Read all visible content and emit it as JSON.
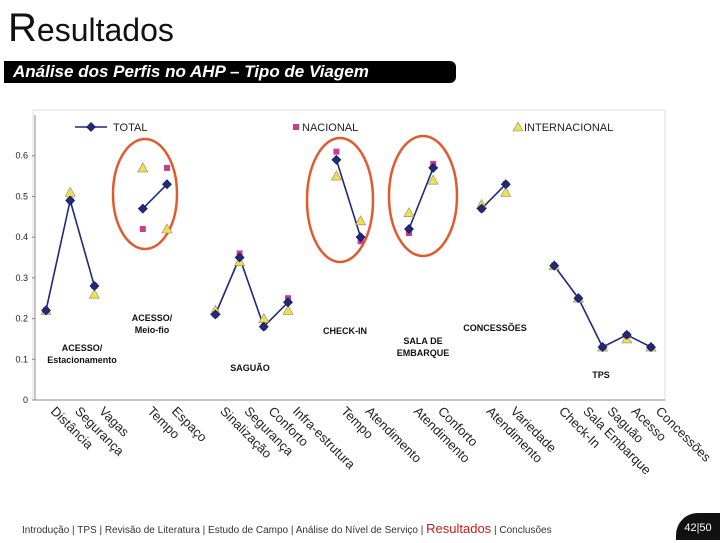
{
  "header": {
    "title": "Resultados",
    "subtitle": "Análise dos Perfis no AHP – Tipo de Viagem"
  },
  "chart_data": {
    "type": "line",
    "categories": [
      "Distância",
      "Segurança",
      "Vagas",
      null,
      "Tempo",
      "Espaço",
      null,
      "Sinalização",
      "Segurança",
      "Conforto",
      "Infra-estrutura",
      null,
      "Tempo",
      "Atendimento",
      null,
      "Atendimento",
      "Conforto",
      null,
      "Atendimento",
      "Variedade",
      null,
      "Check-In",
      "Sala Embarque",
      "Saguão",
      "Acesso",
      "Concessões"
    ],
    "series": [
      {
        "name": "TOTAL",
        "color": "#1f2a7a",
        "marker": "diamond",
        "line": true,
        "values": [
          0.22,
          0.49,
          0.28,
          null,
          0.47,
          0.53,
          null,
          0.21,
          0.35,
          0.18,
          0.24,
          null,
          0.59,
          0.4,
          null,
          0.42,
          0.57,
          null,
          0.47,
          0.53,
          null,
          0.33,
          0.25,
          0.13,
          0.16,
          0.13
        ]
      },
      {
        "name": "NACIONAL",
        "color": "#c4408c",
        "marker": "square",
        "line": false,
        "values": [
          0.22,
          0.49,
          0.28,
          null,
          0.42,
          0.57,
          null,
          0.21,
          0.36,
          0.18,
          0.25,
          null,
          0.61,
          0.39,
          null,
          0.41,
          0.58,
          null,
          0.47,
          0.53,
          null,
          0.33,
          0.25,
          0.13,
          0.16,
          0.13
        ]
      },
      {
        "name": "INTERNACIONAL",
        "color": "#f3df4a",
        "marker": "triangle",
        "line": false,
        "values": [
          0.22,
          0.51,
          0.26,
          null,
          0.57,
          0.42,
          null,
          0.22,
          0.34,
          0.2,
          0.22,
          null,
          0.55,
          0.44,
          null,
          0.46,
          0.54,
          null,
          0.48,
          0.51,
          null,
          0.33,
          0.25,
          0.13,
          0.15,
          0.13
        ]
      }
    ],
    "ylim": [
      0,
      0.7
    ],
    "yticks": [
      0,
      0.1,
      0.2,
      0.3,
      0.4,
      0.5,
      0.6
    ],
    "annotations": [
      "ACESSO/\nMeio-fio",
      "ACESSO/\nEstacionamento",
      "SAGUÃO",
      "CHECK-IN",
      "SALA DE\nEMBARQUE",
      "CONCESSÕES",
      "TPS"
    ]
  },
  "footer": {
    "nav_before": "Introdução | TPS | Revisão de Literatura | Estudo de Campo | Análise do Nível de Serviço |",
    "current": "Resultados",
    "nav_after": "| Conclusões",
    "page": "42|50"
  }
}
